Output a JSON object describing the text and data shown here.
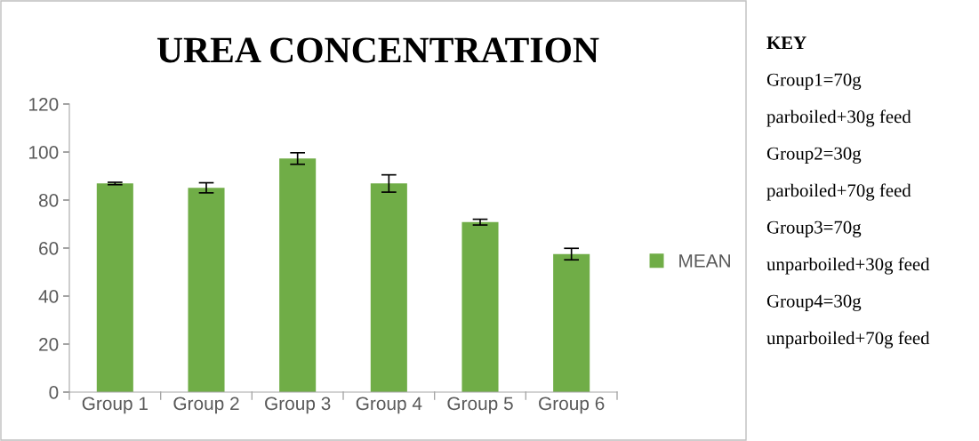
{
  "chart_data": {
    "type": "bar",
    "title": "UREA CONCENTRATION",
    "categories": [
      "Group 1",
      "Group 2",
      "Group 3",
      "Group 4",
      "Group 5",
      "Group 6"
    ],
    "series": [
      {
        "name": "MEAN",
        "color": "#70ad47",
        "values": [
          86.9,
          85.1,
          97.3,
          86.9,
          70.8,
          57.5
        ],
        "errors": [
          0.5,
          2.1,
          2.4,
          3.6,
          1.2,
          2.4
        ]
      }
    ],
    "ylim": [
      0,
      120
    ],
    "yticks": [
      0,
      20,
      40,
      60,
      80,
      100,
      120
    ],
    "grid": false,
    "legend": "right",
    "annotations": [
      "KEY",
      "Group1=70g",
      "parboiled+30g feed",
      "Group2=30g",
      "parboiled+70g feed",
      "Group3=70g",
      "unparboiled+30g feed",
      "Group4=30g",
      "unparboiled+70g feed"
    ]
  }
}
